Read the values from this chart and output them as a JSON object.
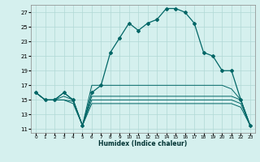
{
  "xlabel": "Humidex (Indice chaleur)",
  "bg_color": "#d5f0ee",
  "grid_color": "#b0d8d5",
  "line_color": "#006666",
  "xlim": [
    -0.5,
    23.5
  ],
  "ylim": [
    10.5,
    28.0
  ],
  "yticks": [
    11,
    13,
    15,
    17,
    19,
    21,
    23,
    25,
    27
  ],
  "xtick_labels": [
    "0",
    "1",
    "2",
    "3",
    "4",
    "5",
    "6",
    "7",
    "8",
    "9",
    "10",
    "11",
    "12",
    "13",
    "14",
    "15",
    "16",
    "17",
    "18",
    "19",
    "20",
    "21",
    "22",
    "23"
  ],
  "series": {
    "main": [
      16.0,
      15.0,
      15.0,
      16.0,
      15.0,
      11.5,
      16.0,
      17.0,
      21.5,
      23.5,
      25.5,
      24.5,
      25.5,
      26.0,
      27.5,
      27.5,
      27.0,
      25.5,
      21.5,
      21.0,
      19.0,
      19.0,
      15.0,
      11.5
    ],
    "line2": [
      16.0,
      15.0,
      15.0,
      16.0,
      15.0,
      11.5,
      17.0,
      17.0,
      17.0,
      17.0,
      17.0,
      17.0,
      17.0,
      17.0,
      17.0,
      17.0,
      17.0,
      17.0,
      17.0,
      17.0,
      17.0,
      16.5,
      15.0,
      11.5
    ],
    "line3": [
      16.0,
      15.0,
      15.0,
      15.5,
      15.0,
      11.5,
      15.5,
      15.5,
      15.5,
      15.5,
      15.5,
      15.5,
      15.5,
      15.5,
      15.5,
      15.5,
      15.5,
      15.5,
      15.5,
      15.5,
      15.5,
      15.5,
      15.0,
      11.5
    ],
    "line4": [
      16.0,
      15.0,
      15.0,
      15.0,
      14.8,
      11.5,
      15.0,
      15.0,
      15.0,
      15.0,
      15.0,
      15.0,
      15.0,
      15.0,
      15.0,
      15.0,
      15.0,
      15.0,
      15.0,
      15.0,
      15.0,
      15.0,
      14.5,
      11.5
    ],
    "line5": [
      16.0,
      15.0,
      15.0,
      15.0,
      14.5,
      11.5,
      14.5,
      14.5,
      14.5,
      14.5,
      14.5,
      14.5,
      14.5,
      14.5,
      14.5,
      14.5,
      14.5,
      14.5,
      14.5,
      14.5,
      14.5,
      14.5,
      14.0,
      11.5
    ]
  }
}
